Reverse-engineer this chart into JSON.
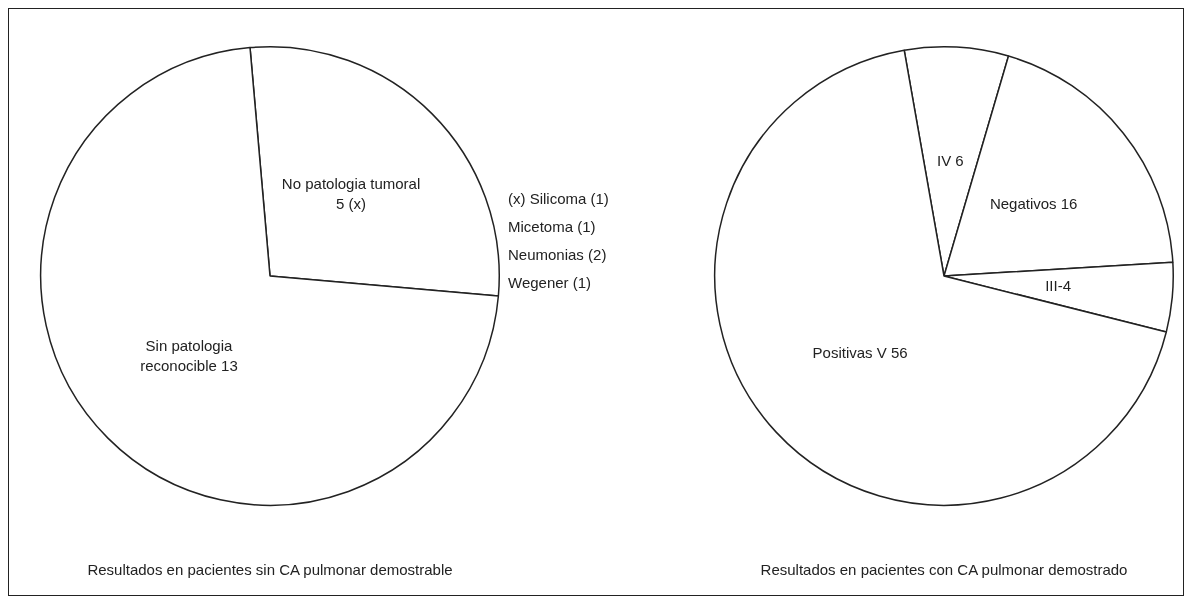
{
  "chart_data": [
    {
      "type": "pie",
      "title": "Resultados en pacientes sin CA pulmonar demostrable",
      "categories": [
        "No patologia tumoral 5 (x)",
        "Sin patologia reconocible 13"
      ],
      "values": [
        5,
        13
      ],
      "colors": [
        "#ffffff",
        "#ffffff"
      ],
      "annotations": [
        "(x) Silicoma (1)",
        "Micetoma (1)",
        "Neumonias (2)",
        "Wegener (1)"
      ]
    },
    {
      "type": "pie",
      "title": "Resultados en pacientes con CA pulmonar demostrado",
      "categories": [
        "IV 6",
        "Negativos 16",
        "III-4",
        "Positivas V 56"
      ],
      "values": [
        6,
        16,
        4,
        56
      ],
      "colors": [
        "#ffffff",
        "#ffffff",
        "#ffffff",
        "#ffffff"
      ]
    }
  ]
}
